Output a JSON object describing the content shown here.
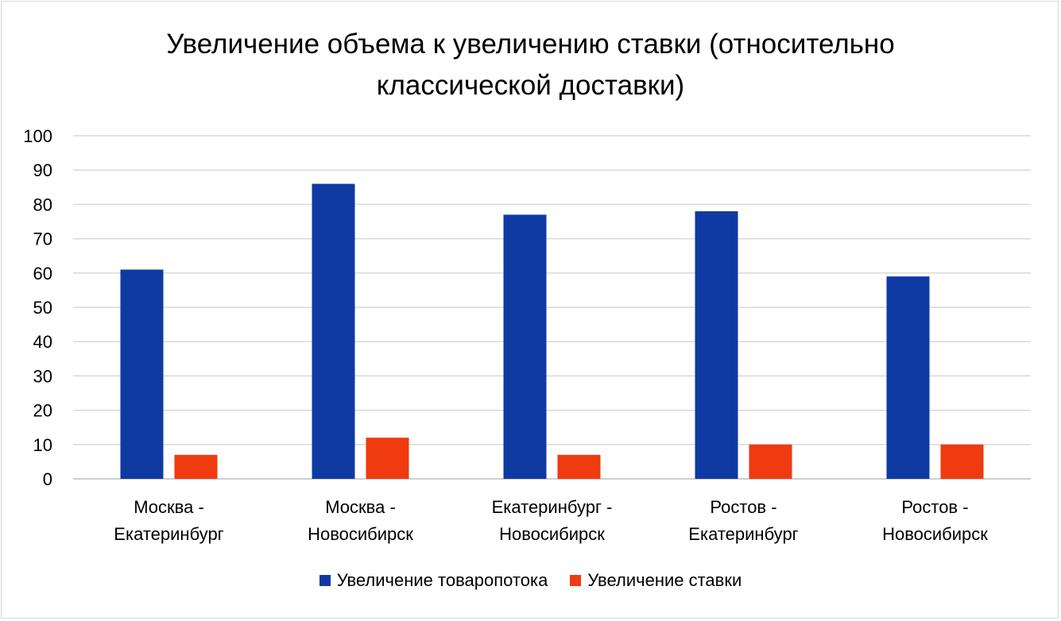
{
  "chart_data": {
    "type": "bar",
    "title_lines": [
      "Увеличение объема к увеличению ставки (относительно",
      "классической доставки)"
    ],
    "categories": [
      [
        "Москва -",
        "Екатеринбург"
      ],
      [
        "Москва -",
        "Новосибирск"
      ],
      [
        "Екатеринбург -",
        "Новосибирск"
      ],
      [
        "Ростов -",
        "Екатеринбург"
      ],
      [
        "Ростов -",
        "Новосибирск"
      ]
    ],
    "series": [
      {
        "name": "Увеличение товаропотока",
        "color": "#0f3aa3",
        "values": [
          61,
          86,
          77,
          78,
          59
        ]
      },
      {
        "name": "Увеличение ставки",
        "color": "#f03a10",
        "values": [
          7,
          12,
          7,
          10,
          10
        ]
      }
    ],
    "ylim": [
      0,
      100
    ],
    "yticks": [
      "0",
      "10",
      "20",
      "30",
      "40",
      "50",
      "60",
      "70",
      "80",
      "90",
      "100"
    ],
    "grid": true,
    "legend_position": "bottom"
  }
}
